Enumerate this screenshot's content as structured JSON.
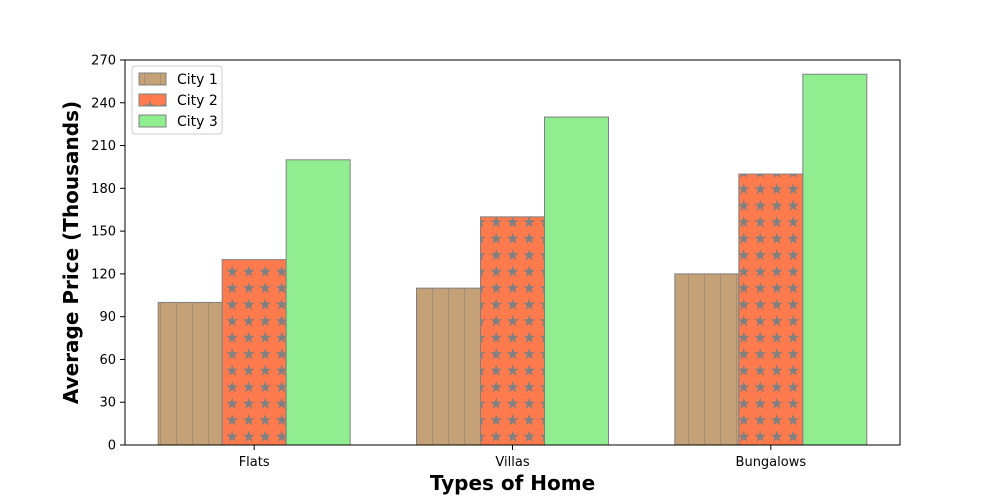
{
  "chart_data": {
    "type": "bar",
    "title": "",
    "xlabel": "Types of Home",
    "ylabel": "Average Price (Thousands)",
    "categories": [
      "Flats",
      "Villas",
      "Bungalows"
    ],
    "ylim": [
      0,
      270
    ],
    "yticks": [
      0,
      30,
      60,
      90,
      120,
      150,
      180,
      210,
      240,
      270
    ],
    "grid": false,
    "legend_position": "top-left",
    "series": [
      {
        "name": "City 1",
        "values": [
          100,
          110,
          120
        ],
        "color": "#c4a176",
        "hatch": "vertical-lines",
        "edge": "#808080"
      },
      {
        "name": "City 2",
        "values": [
          130,
          160,
          190
        ],
        "color": "#ff7a4d",
        "hatch": "stars",
        "edge": "#808080"
      },
      {
        "name": "City 3",
        "values": [
          200,
          230,
          260
        ],
        "color": "#90ee90",
        "hatch": "none",
        "edge": "#808080"
      }
    ]
  }
}
